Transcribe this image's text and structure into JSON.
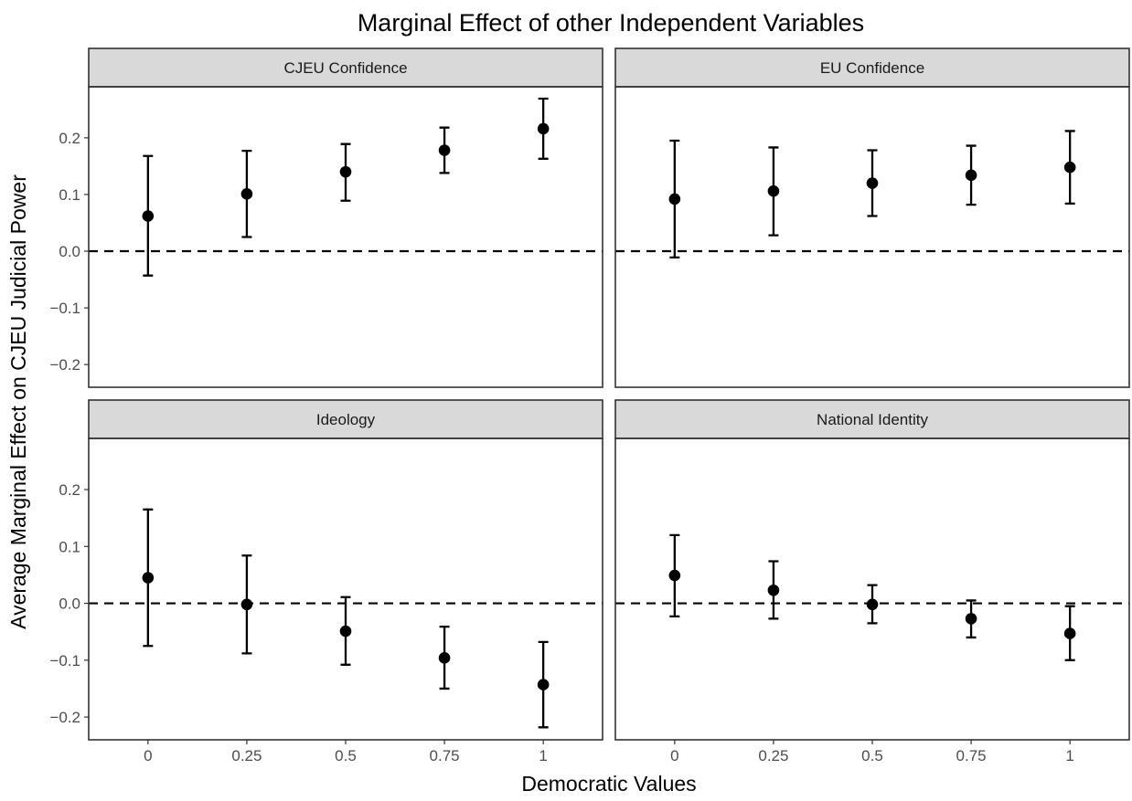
{
  "chart_data": {
    "type": "scatter",
    "title": "Marginal Effect of other Independent Variables",
    "xlabel": "Democratic Values",
    "ylabel": "Average Marginal Effect on CJEU Judicial Power",
    "x_ticks": [
      "0",
      "0.25",
      "0.5",
      "0.75",
      "1"
    ],
    "y_ticks": [
      "0.2",
      "0.1",
      "0.0",
      "−0.1",
      "−0.2"
    ],
    "x_values": [
      0,
      0.25,
      0.5,
      0.75,
      1
    ],
    "xlim": [
      -0.15,
      1.15
    ],
    "ylim": [
      -0.24,
      0.29
    ],
    "reference_line": 0,
    "grid": false,
    "panels": [
      {
        "name": "CJEU Confidence",
        "estimate": [
          0.062,
          0.101,
          0.14,
          0.178,
          0.216
        ],
        "lower": [
          -0.043,
          0.025,
          0.089,
          0.138,
          0.163
        ],
        "upper": [
          0.168,
          0.177,
          0.189,
          0.218,
          0.269
        ]
      },
      {
        "name": "EU Confidence",
        "estimate": [
          0.092,
          0.106,
          0.12,
          0.134,
          0.148
        ],
        "lower": [
          -0.011,
          0.028,
          0.062,
          0.082,
          0.084
        ],
        "upper": [
          0.195,
          0.183,
          0.178,
          0.186,
          0.212
        ]
      },
      {
        "name": "Ideology",
        "estimate": [
          0.045,
          -0.002,
          -0.049,
          -0.096,
          -0.143
        ],
        "lower": [
          -0.075,
          -0.088,
          -0.108,
          -0.15,
          -0.218
        ],
        "upper": [
          0.165,
          0.084,
          0.011,
          -0.041,
          -0.068
        ]
      },
      {
        "name": "National Identity",
        "estimate": [
          0.049,
          0.023,
          -0.002,
          -0.027,
          -0.053
        ],
        "lower": [
          -0.023,
          -0.027,
          -0.035,
          -0.06,
          -0.1
        ],
        "upper": [
          0.12,
          0.074,
          0.032,
          0.005,
          -0.005
        ]
      }
    ]
  }
}
